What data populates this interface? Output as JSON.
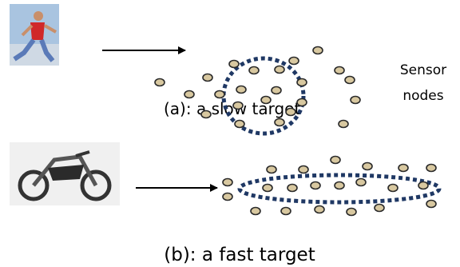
{
  "annotations": {
    "sensor_nodes": "Sensor nodes"
  },
  "captions": {
    "a": "(a): a slow target",
    "b": "(b): a fast target"
  }
}
